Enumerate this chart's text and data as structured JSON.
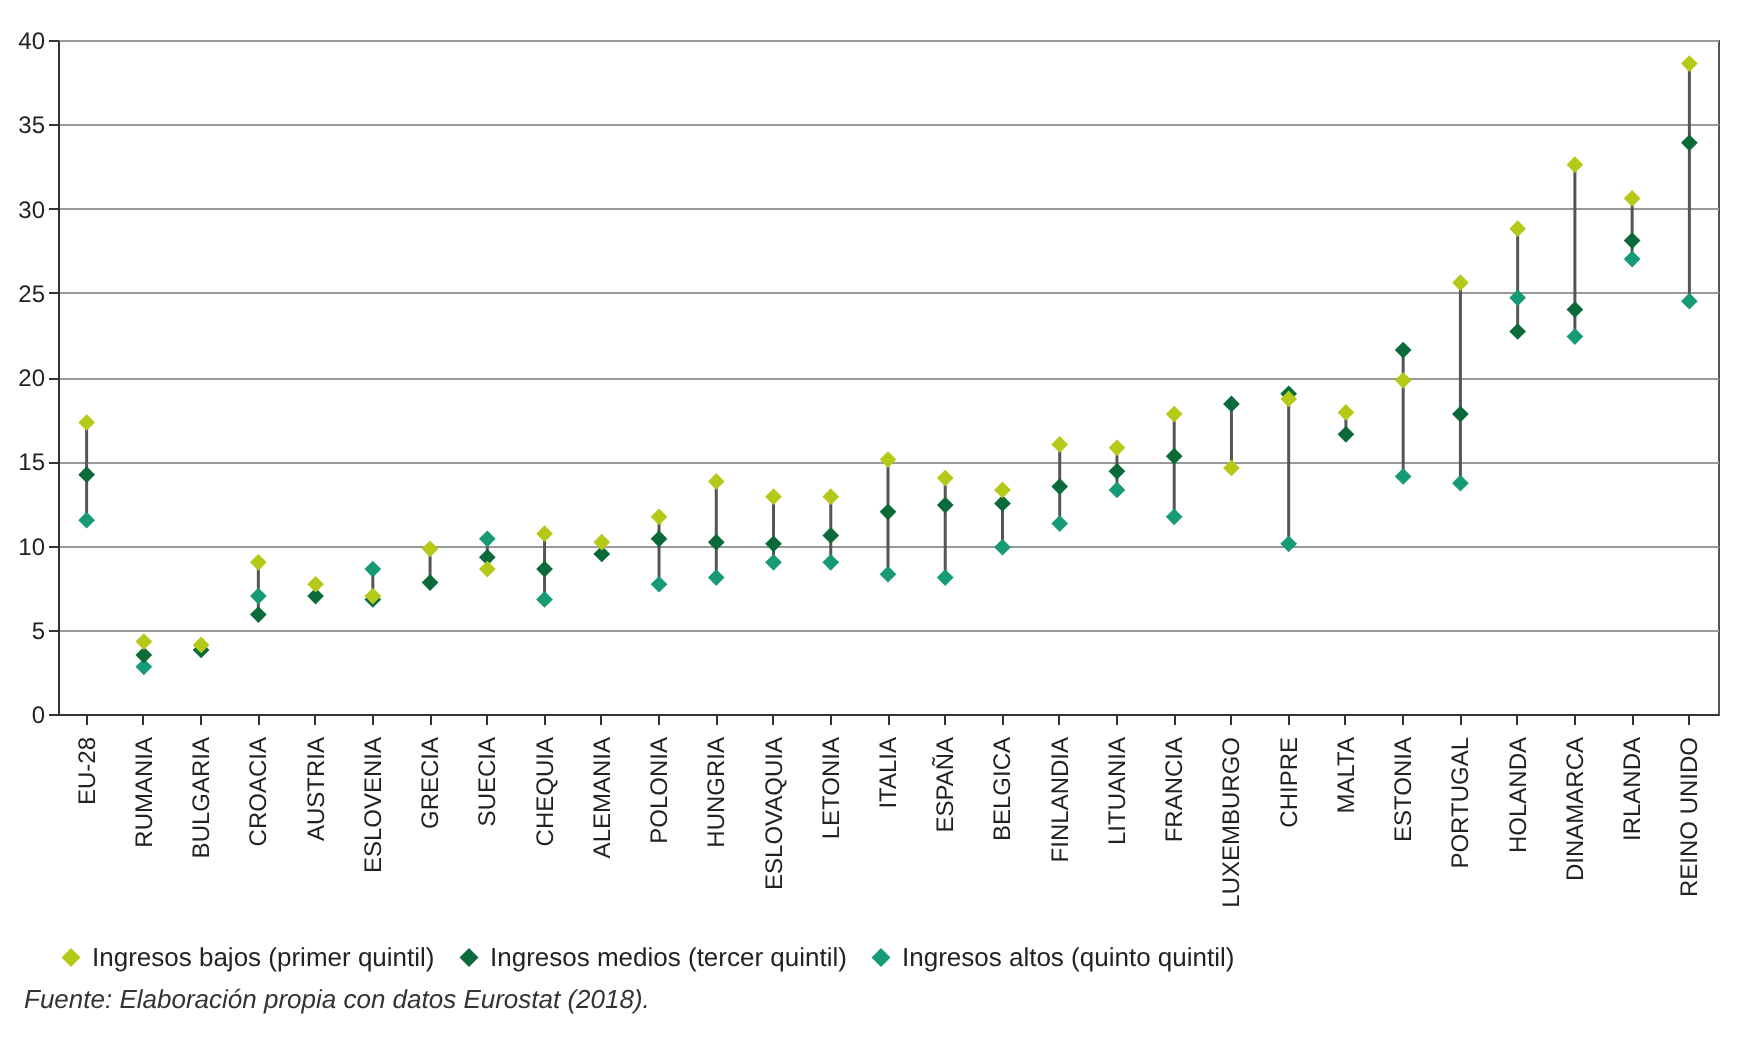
{
  "chart_data": {
    "type": "scatter",
    "categories": [
      "EU-28",
      "RUMANIA",
      "BULGARIA",
      "CROACIA",
      "AUSTRIA",
      "ESLOVENIA",
      "GRECIA",
      "SUECIA",
      "CHEQUIA",
      "ALEMANIA",
      "POLONIA",
      "HUNGRIA",
      "ESLOVAQUIA",
      "LETONIA",
      "ITALIA",
      "ESPAÑA",
      "BELGICA",
      "FINLANDIA",
      "LITUANIA",
      "FRANCIA",
      "LUXEMBURGO",
      "CHIPRE",
      "MALTA",
      "ESTONIA",
      "PORTUGAL",
      "HOLANDA",
      "DINAMARCA",
      "IRLANDA",
      "REINO UNIDO"
    ],
    "series": [
      {
        "name": "Ingresos bajos (primer quintil)",
        "color": "#b5c918",
        "values": [
          17.3,
          4.3,
          4.1,
          9.0,
          7.7,
          7.0,
          9.8,
          8.6,
          10.7,
          10.2,
          11.7,
          13.8,
          12.9,
          12.9,
          15.1,
          14.0,
          13.3,
          16.0,
          15.8,
          17.8,
          14.6,
          18.7,
          17.9,
          19.8,
          25.6,
          28.8,
          32.6,
          30.6,
          38.6
        ]
      },
      {
        "name": "Ingresos medios (tercer quintil)",
        "color": "#0b6a3a",
        "values": [
          14.2,
          3.5,
          3.8,
          5.9,
          7.0,
          6.8,
          7.8,
          9.3,
          8.6,
          9.5,
          10.4,
          10.2,
          10.1,
          10.6,
          12.0,
          12.4,
          12.5,
          13.5,
          14.4,
          15.3,
          18.4,
          19.0,
          16.6,
          21.6,
          17.8,
          22.7,
          24.0,
          28.1,
          33.9
        ]
      },
      {
        "name": "Ingresos altos (quinto quintil)",
        "color": "#179b77",
        "values": [
          11.5,
          2.8,
          null,
          7.0,
          null,
          8.6,
          null,
          10.4,
          6.8,
          null,
          7.7,
          8.1,
          9.0,
          9.0,
          8.3,
          8.1,
          9.9,
          11.3,
          13.3,
          11.7,
          null,
          10.1,
          null,
          14.1,
          13.7,
          24.7,
          22.4,
          27.0,
          24.5
        ]
      }
    ],
    "ylim": [
      0,
      40
    ],
    "yticks": [
      0,
      5,
      10,
      15,
      20,
      25,
      30,
      35,
      40
    ],
    "grid": true,
    "legend": "bottom",
    "marker": "diamond",
    "annotations": [
      "Fuente: Elaboración propia con datos Eurostat (2018)."
    ]
  }
}
